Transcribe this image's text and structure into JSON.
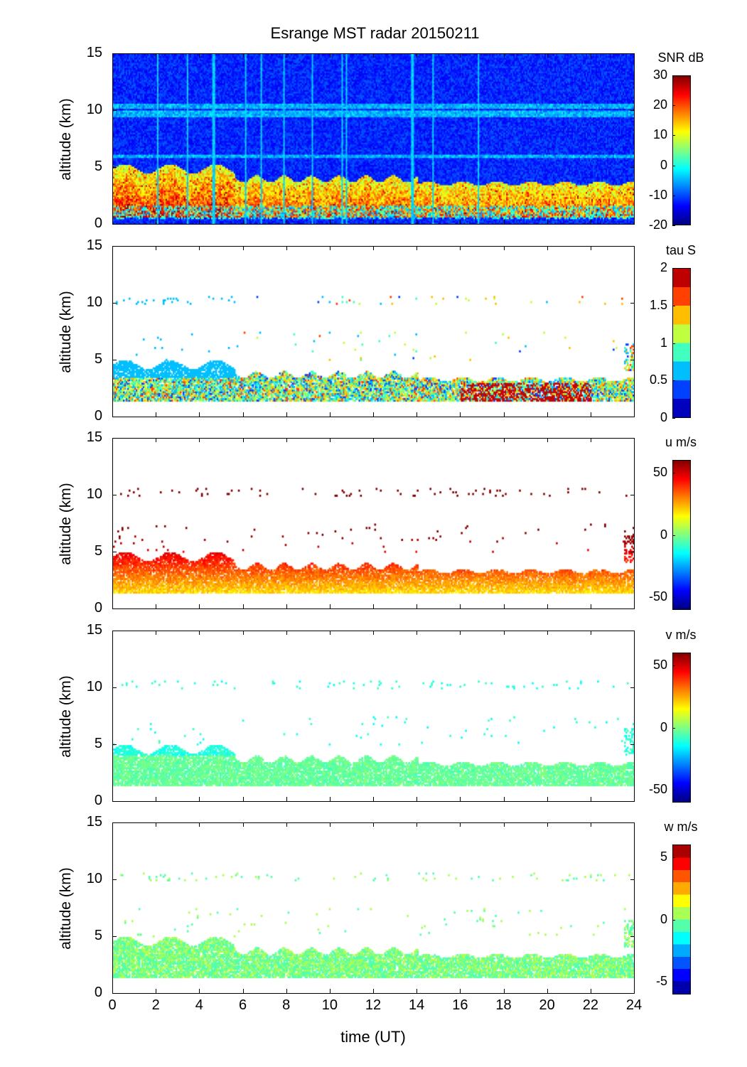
{
  "chart_data": {
    "type": "heatmap",
    "title": "Esrange MST radar 20150211",
    "xlabel": "time (UT)",
    "xlim": [
      0,
      24
    ],
    "xticks": [
      "0",
      "2",
      "4",
      "6",
      "8",
      "10",
      "12",
      "14",
      "16",
      "18",
      "20",
      "22",
      "24"
    ],
    "panels": [
      {
        "name": "snr",
        "ylabel": "altitude (km)",
        "ylim": [
          0,
          15
        ],
        "yticks": [
          "0",
          "5",
          "10",
          "15"
        ],
        "colorbar": {
          "label": "SNR dB",
          "range": [
            -20,
            30
          ],
          "ticks": [
            "30",
            "20",
            "10",
            "0",
            "-10",
            "-20"
          ],
          "tickvals": [
            30,
            20,
            10,
            0,
            -10,
            -20
          ],
          "levels": 0
        },
        "description_values": {
          "background_snr_db": -15,
          "echo_layer_km": [
            1.2,
            4.8
          ],
          "echo_layer_snr_db": [
            5,
            25
          ],
          "layer_top_km_early": 5.0,
          "layer_top_km_late": 3.6
        }
      },
      {
        "name": "tau",
        "ylabel": "altitude (km)",
        "ylim": [
          0,
          15
        ],
        "yticks": [
          "0",
          "5",
          "10",
          "15"
        ],
        "colorbar": {
          "label": "tau S",
          "range": [
            0,
            2
          ],
          "ticks": [
            "2",
            "1.5",
            "1",
            "0.5",
            "0"
          ],
          "tickvals": [
            2,
            1.5,
            1,
            0.5,
            0
          ],
          "levels": 8
        }
      },
      {
        "name": "u",
        "ylabel": "altitude (km)",
        "ylim": [
          0,
          15
        ],
        "yticks": [
          "0",
          "5",
          "10",
          "15"
        ],
        "colorbar": {
          "label": "u m/s",
          "range": [
            -60,
            60
          ],
          "ticks": [
            "50",
            "0",
            "-50"
          ],
          "tickvals": [
            50,
            0,
            -50
          ],
          "levels": 0
        }
      },
      {
        "name": "v",
        "ylabel": "altitude (km)",
        "ylim": [
          0,
          15
        ],
        "yticks": [
          "0",
          "5",
          "10",
          "15"
        ],
        "colorbar": {
          "label": "v m/s",
          "range": [
            -60,
            60
          ],
          "ticks": [
            "50",
            "0",
            "-50"
          ],
          "tickvals": [
            50,
            0,
            -50
          ],
          "levels": 0
        }
      },
      {
        "name": "w",
        "ylabel": "altitude (km)",
        "ylim": [
          0,
          15
        ],
        "yticks": [
          "0",
          "5",
          "10",
          "15"
        ],
        "colorbar": {
          "label": "w m/s",
          "range": [
            -6,
            6
          ],
          "ticks": [
            "5",
            "0",
            "-5"
          ],
          "tickvals": [
            5,
            0,
            -5
          ],
          "levels": 12
        }
      }
    ]
  }
}
